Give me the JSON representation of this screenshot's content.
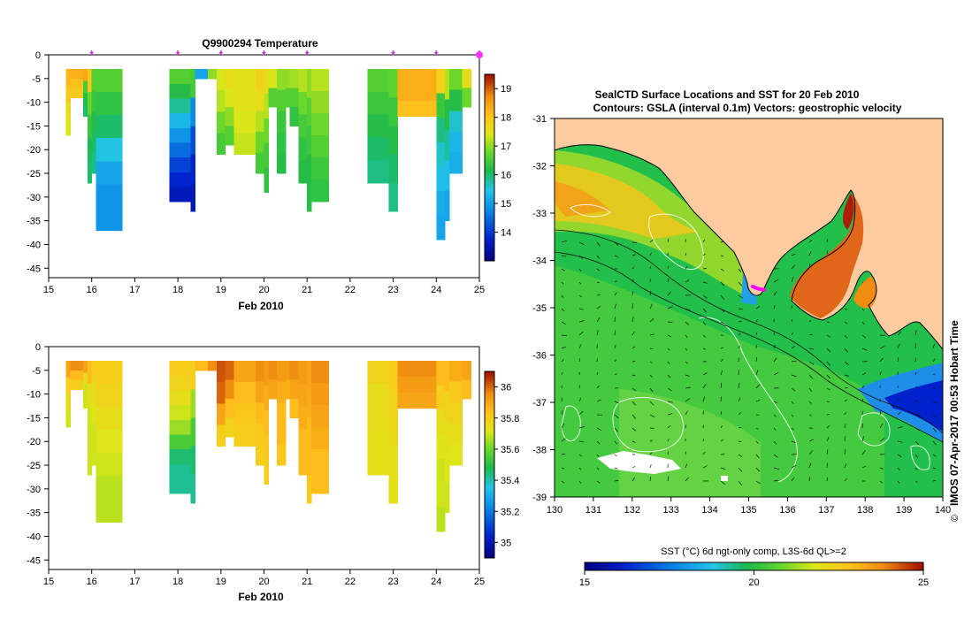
{
  "colors": {
    "land": "#fccba0",
    "grid": "#000000",
    "marker": "#cc33cc"
  },
  "chart_data": [
    {
      "id": "temp-section",
      "type": "heatmap",
      "title": "Q9900294  Temperature",
      "xlabel": "Feb 2010",
      "ylabel": "",
      "xlim": [
        15,
        25
      ],
      "ylim": [
        -47,
        0
      ],
      "x_ticks": [
        "15",
        "16",
        "17",
        "18",
        "19",
        "20",
        "21",
        "22",
        "23",
        "24",
        "25"
      ],
      "y_ticks": [
        "0",
        "-5",
        "-10",
        "-15",
        "-20",
        "-25",
        "-30",
        "-35",
        "-40",
        "-45"
      ],
      "colorbar": {
        "min": 13,
        "max": 19.5,
        "ticks": [
          "14",
          "15",
          "16",
          "17",
          "18",
          "19"
        ]
      },
      "profile_markers_day": [
        16,
        18,
        19,
        20,
        21,
        23,
        24,
        25
      ],
      "profiles": [
        {
          "x0": 15.4,
          "x1": 15.5,
          "bottom": -17,
          "values": [
            18.2,
            18.0,
            17.6,
            17.4
          ]
        },
        {
          "x0": 15.5,
          "x1": 15.8,
          "bottom": -9,
          "values": [
            18.3,
            18.1,
            17.9
          ]
        },
        {
          "x0": 15.8,
          "x1": 15.9,
          "bottom": -13,
          "values": [
            18.4,
            16.5,
            16.2,
            16.0
          ]
        },
        {
          "x0": 15.9,
          "x1": 16.0,
          "bottom": -27,
          "values": [
            18.0,
            16.8,
            16.4,
            16.1,
            16.0
          ]
        },
        {
          "x0": 16.0,
          "x1": 16.1,
          "bottom": -25,
          "values": [
            16.6,
            16.4,
            16.2,
            16.0,
            15.9
          ]
        },
        {
          "x0": 16.1,
          "x1": 16.7,
          "bottom": -37,
          "values": [
            16.6,
            16.3,
            16.0,
            15.5,
            15.1,
            14.9,
            14.9
          ]
        },
        {
          "x0": 17.8,
          "x1": 18.3,
          "bottom": -31,
          "values": [
            16.6,
            16.2,
            15.8,
            15.3,
            14.9,
            14.5,
            14.1,
            13.8,
            13.6
          ]
        },
        {
          "x0": 18.3,
          "x1": 18.4,
          "bottom": -33,
          "values": [
            16.5,
            14.8,
            14.2,
            13.8,
            13.6
          ]
        },
        {
          "x0": 18.4,
          "x1": 18.7,
          "bottom": -5,
          "values": [
            15.1
          ]
        },
        {
          "x0": 18.7,
          "x1": 18.9,
          "bottom": -5,
          "values": [
            17.0
          ]
        },
        {
          "x0": 18.9,
          "x1": 19.1,
          "bottom": -21,
          "values": [
            17.4,
            17.2,
            16.8,
            16.5
          ]
        },
        {
          "x0": 19.1,
          "x1": 19.3,
          "bottom": -19,
          "values": [
            17.6,
            17.4,
            17.0,
            16.6
          ]
        },
        {
          "x0": 19.3,
          "x1": 19.8,
          "bottom": -21,
          "values": [
            17.5,
            17.5,
            17.4,
            17.3
          ]
        },
        {
          "x0": 19.8,
          "x1": 20.0,
          "bottom": -25,
          "values": [
            17.8,
            17.6,
            17.2,
            16.8,
            16.5
          ]
        },
        {
          "x0": 20.0,
          "x1": 20.1,
          "bottom": -29,
          "values": [
            17.6,
            17.2,
            16.8,
            16.5,
            16.3
          ]
        },
        {
          "x0": 20.1,
          "x1": 20.3,
          "bottom": -11,
          "values": [
            17.4,
            16.6
          ]
        },
        {
          "x0": 20.3,
          "x1": 20.5,
          "bottom": -25,
          "values": [
            17.0,
            16.6,
            16.4,
            16.3,
            16.2
          ]
        },
        {
          "x0": 20.5,
          "x1": 20.6,
          "bottom": -11,
          "values": [
            17.0,
            16.6
          ]
        },
        {
          "x0": 20.6,
          "x1": 20.8,
          "bottom": -15,
          "values": [
            17.1,
            16.6,
            16.3
          ]
        },
        {
          "x0": 20.8,
          "x1": 21.0,
          "bottom": -27,
          "values": [
            17.2,
            16.8,
            16.5,
            16.3,
            16.2
          ]
        },
        {
          "x0": 21.0,
          "x1": 21.1,
          "bottom": -33,
          "values": [
            17.0,
            16.6,
            16.4,
            16.2,
            16.2
          ]
        },
        {
          "x0": 21.1,
          "x1": 21.5,
          "bottom": -31,
          "values": [
            17.2,
            17.0,
            16.8,
            16.6,
            16.4,
            16.3
          ]
        },
        {
          "x0": 22.4,
          "x1": 22.9,
          "bottom": -27,
          "values": [
            16.6,
            16.4,
            16.2,
            16.0,
            15.9
          ]
        },
        {
          "x0": 22.9,
          "x1": 23.1,
          "bottom": -33,
          "values": [
            16.7,
            16.4,
            16.2,
            16.0,
            15.9
          ]
        },
        {
          "x0": 23.1,
          "x1": 24.0,
          "bottom": -13,
          "values": [
            18.3,
            18.3,
            18.1
          ]
        },
        {
          "x0": 24.0,
          "x1": 24.2,
          "bottom": -39,
          "values": [
            17.8,
            16.4,
            15.9,
            15.6,
            15.4,
            15.2,
            15.1
          ]
        },
        {
          "x0": 24.2,
          "x1": 24.3,
          "bottom": -35,
          "values": [
            17.2,
            16.2,
            15.8,
            15.4,
            15.1
          ]
        },
        {
          "x0": 24.3,
          "x1": 24.6,
          "bottom": -25,
          "values": [
            16.8,
            16.2,
            15.6,
            15.3,
            15.2
          ]
        },
        {
          "x0": 24.6,
          "x1": 24.8,
          "bottom": -11,
          "values": [
            17.6,
            16.8
          ]
        }
      ]
    },
    {
      "id": "salinity-section",
      "type": "heatmap",
      "title": "",
      "xlabel": "Feb 2010",
      "ylabel": "",
      "xlim": [
        15,
        25
      ],
      "ylim": [
        -47,
        0
      ],
      "x_ticks": [
        "15",
        "16",
        "17",
        "18",
        "19",
        "20",
        "21",
        "22",
        "23",
        "24",
        "25"
      ],
      "y_ticks": [
        "0",
        "-5",
        "-10",
        "-15",
        "-20",
        "-25",
        "-30",
        "-35",
        "-40",
        "-45"
      ],
      "colorbar": {
        "min": 34.9,
        "max": 36.1,
        "ticks": [
          "35",
          "35.2",
          "35.4",
          "35.6",
          "35.8",
          "36"
        ]
      },
      "profiles": [
        {
          "x0": 15.4,
          "x1": 15.5,
          "bottom": -17,
          "values": [
            35.9,
            35.8,
            35.75,
            35.7
          ]
        },
        {
          "x0": 15.5,
          "x1": 15.8,
          "bottom": -9,
          "values": [
            35.95,
            35.85,
            35.8
          ]
        },
        {
          "x0": 15.8,
          "x1": 15.9,
          "bottom": -13,
          "values": [
            35.9,
            35.75,
            35.7,
            35.7
          ]
        },
        {
          "x0": 15.9,
          "x1": 16.0,
          "bottom": -27,
          "values": [
            35.85,
            35.75,
            35.7,
            35.7,
            35.7
          ]
        },
        {
          "x0": 16.0,
          "x1": 16.1,
          "bottom": -25,
          "values": [
            35.8,
            35.75,
            35.72,
            35.7,
            35.7
          ]
        },
        {
          "x0": 16.1,
          "x1": 16.7,
          "bottom": -37,
          "values": [
            35.8,
            35.78,
            35.75,
            35.72,
            35.7,
            35.68,
            35.68
          ]
        },
        {
          "x0": 17.8,
          "x1": 18.3,
          "bottom": -31,
          "values": [
            35.8,
            35.78,
            35.75,
            35.7,
            35.65,
            35.55,
            35.45,
            35.42,
            35.42
          ]
        },
        {
          "x0": 18.3,
          "x1": 18.4,
          "bottom": -33,
          "values": [
            35.8,
            35.65,
            35.55,
            35.45,
            35.42
          ]
        },
        {
          "x0": 18.4,
          "x1": 18.7,
          "bottom": -5,
          "values": [
            35.85
          ]
        },
        {
          "x0": 18.7,
          "x1": 18.9,
          "bottom": -5,
          "values": [
            35.95
          ]
        },
        {
          "x0": 18.9,
          "x1": 19.1,
          "bottom": -21,
          "values": [
            36.02,
            36.0,
            35.9,
            35.8
          ]
        },
        {
          "x0": 19.1,
          "x1": 19.3,
          "bottom": -19,
          "values": [
            36.0,
            35.95,
            35.85,
            35.78
          ]
        },
        {
          "x0": 19.3,
          "x1": 19.8,
          "bottom": -21,
          "values": [
            35.9,
            35.85,
            35.82,
            35.8
          ]
        },
        {
          "x0": 19.8,
          "x1": 20.0,
          "bottom": -25,
          "values": [
            35.95,
            35.9,
            35.85,
            35.82,
            35.8
          ]
        },
        {
          "x0": 20.0,
          "x1": 20.1,
          "bottom": -29,
          "values": [
            35.92,
            35.88,
            35.85,
            35.82,
            35.8
          ]
        },
        {
          "x0": 20.1,
          "x1": 20.3,
          "bottom": -11,
          "values": [
            35.95,
            35.9
          ]
        },
        {
          "x0": 20.3,
          "x1": 20.5,
          "bottom": -25,
          "values": [
            35.92,
            35.88,
            35.85,
            35.85,
            35.82
          ]
        },
        {
          "x0": 20.5,
          "x1": 20.6,
          "bottom": -11,
          "values": [
            35.92,
            35.88
          ]
        },
        {
          "x0": 20.6,
          "x1": 20.8,
          "bottom": -15,
          "values": [
            35.95,
            35.9,
            35.85
          ]
        },
        {
          "x0": 20.8,
          "x1": 21.0,
          "bottom": -27,
          "values": [
            35.92,
            35.9,
            35.88,
            35.85,
            35.85
          ]
        },
        {
          "x0": 21.0,
          "x1": 21.1,
          "bottom": -33,
          "values": [
            35.9,
            35.88,
            35.85,
            35.85,
            35.82
          ]
        },
        {
          "x0": 21.1,
          "x1": 21.5,
          "bottom": -31,
          "values": [
            35.95,
            35.92,
            35.9,
            35.88,
            35.85,
            35.85
          ]
        },
        {
          "x0": 22.4,
          "x1": 22.9,
          "bottom": -27,
          "values": [
            35.78,
            35.75,
            35.75,
            35.74,
            35.74
          ]
        },
        {
          "x0": 22.9,
          "x1": 23.1,
          "bottom": -33,
          "values": [
            35.8,
            35.78,
            35.76,
            35.75,
            35.74
          ]
        },
        {
          "x0": 23.1,
          "x1": 24.0,
          "bottom": -13,
          "values": [
            35.95,
            35.92,
            35.9
          ]
        },
        {
          "x0": 24.0,
          "x1": 24.2,
          "bottom": -39,
          "values": [
            35.85,
            35.8,
            35.75,
            35.72,
            35.7,
            35.7,
            35.68
          ]
        },
        {
          "x0": 24.2,
          "x1": 24.3,
          "bottom": -35,
          "values": [
            35.85,
            35.78,
            35.74,
            35.72,
            35.7
          ]
        },
        {
          "x0": 24.3,
          "x1": 24.6,
          "bottom": -25,
          "values": [
            35.88,
            35.82,
            35.78,
            35.75,
            35.72
          ]
        },
        {
          "x0": 24.6,
          "x1": 24.8,
          "bottom": -11,
          "values": [
            35.9,
            35.85
          ]
        }
      ]
    },
    {
      "id": "sst-map",
      "type": "heatmap",
      "title": "SealCTD Surface Locations and SST for 20 Feb 2010",
      "subtitle": "Contours: GSLA (interval 0.1m) Vectors: geostrophic velocity",
      "xlim": [
        130,
        140
      ],
      "ylim": [
        -39,
        -31
      ],
      "x_ticks": [
        "130",
        "131",
        "132",
        "133",
        "134",
        "135",
        "136",
        "137",
        "138",
        "139",
        "140"
      ],
      "y_ticks": [
        "-31",
        "-32",
        "-33",
        "-34",
        "-35",
        "-36",
        "-37",
        "-38",
        "-39"
      ],
      "colorbar": {
        "label": "SST (°C) 6d ngt-only comp, L3S-6d QL>=2",
        "min": 15,
        "max": 25,
        "ticks": [
          "15",
          "20",
          "25"
        ]
      },
      "seal_track": [
        [
          135.1,
          -34.55
        ],
        [
          135.25,
          -34.6
        ],
        [
          135.4,
          -34.62
        ]
      ],
      "credit": "IMOS 07-Apr-2017 00:53 Hobart Time",
      "copyright_symbol": "©"
    }
  ]
}
